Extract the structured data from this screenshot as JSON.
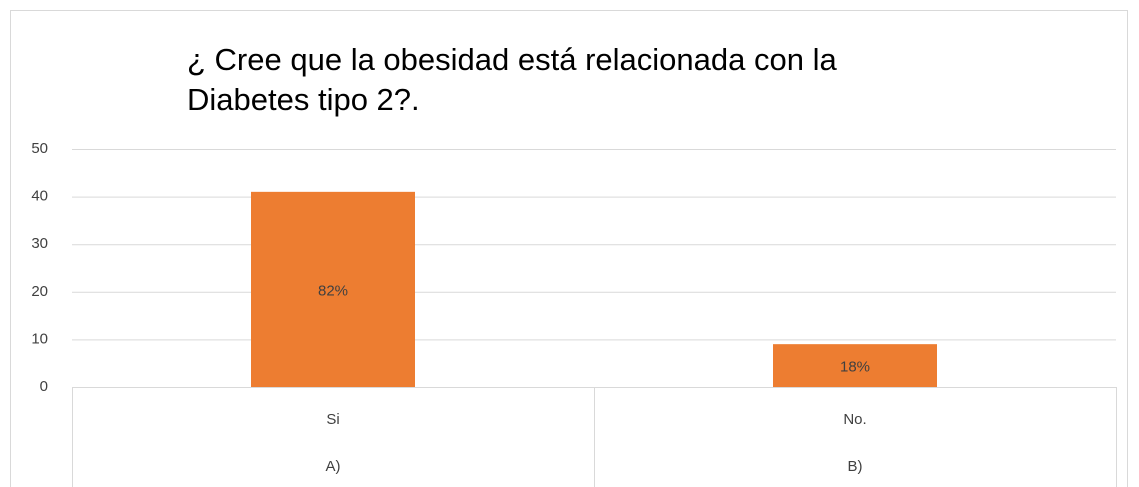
{
  "chart_data": {
    "type": "bar",
    "title": "¿ Cree que la obesidad está relacionada con la Diabetes tipo 2?.",
    "categories": [
      "Si",
      "No."
    ],
    "category_groups": [
      "A)",
      "B)"
    ],
    "values": [
      41,
      9
    ],
    "value_labels": [
      "82%",
      "18%"
    ],
    "color": "#ed7d31",
    "ylim": [
      0,
      50
    ],
    "yticks": [
      0,
      10,
      20,
      30,
      40,
      50
    ],
    "grid": true
  }
}
